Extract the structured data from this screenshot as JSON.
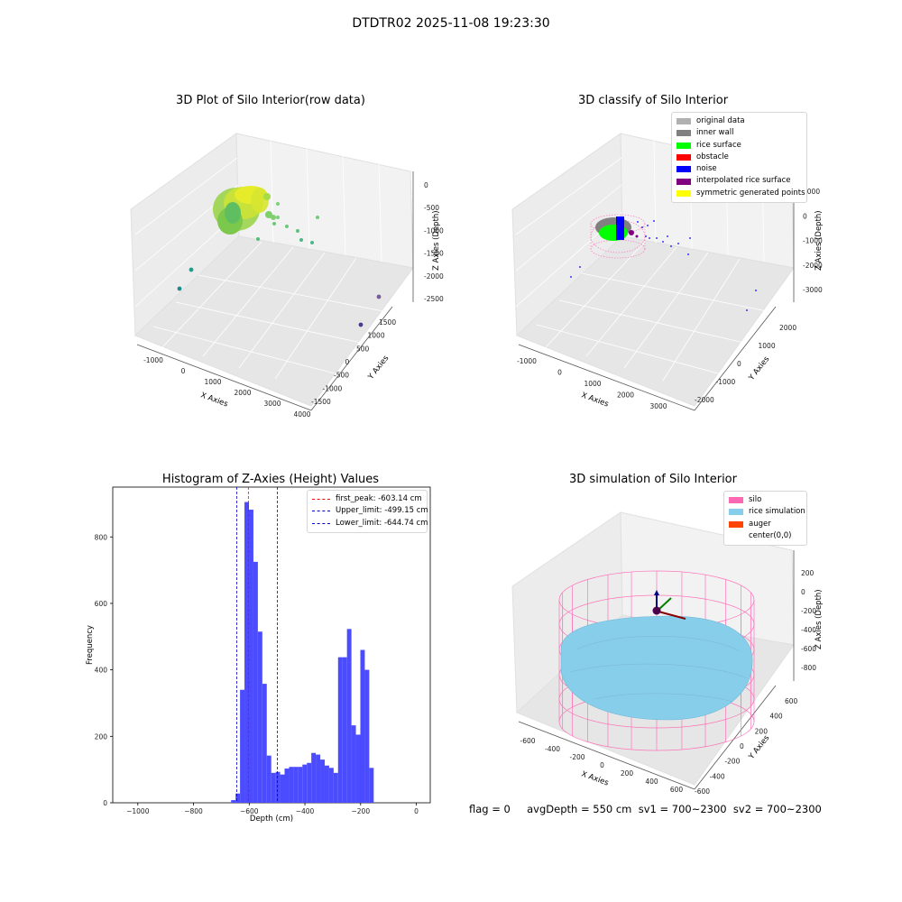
{
  "suptitle": "DTDTR02 2025-11-08 19:23:30",
  "panels": {
    "raw": {
      "title": "3D Plot of Silo Interior(row data)",
      "xlabel": "X Axies",
      "ylabel": "Y Axies",
      "zlabel": "Z Axies (Depth)",
      "xticks": [
        "-1000",
        "0",
        "1000",
        "2000",
        "3000",
        "4000"
      ],
      "yticks": [
        "1500",
        "1000",
        "500",
        "0",
        "-500",
        "-1000",
        "-1500"
      ],
      "zticks": [
        "0",
        "-500",
        "-1000",
        "-1500",
        "-2000",
        "-2500"
      ]
    },
    "classify": {
      "title": "3D classify of Silo Interior",
      "xlabel": "X Axies",
      "ylabel": "Y Axies",
      "zlabel": "Z Axies (Depth)",
      "xticks": [
        "-1000",
        "0",
        "1000",
        "2000",
        "3000"
      ],
      "yticks": [
        "2000",
        "1000",
        "0",
        "-1000",
        "-2000"
      ],
      "zticks": [
        "1000",
        "0",
        "-1000",
        "-2000",
        "-3000"
      ],
      "legend": [
        {
          "label": "original data",
          "color": "#b0b0b0"
        },
        {
          "label": "inner wall",
          "color": "#808080"
        },
        {
          "label": "rice surface",
          "color": "#00ff00"
        },
        {
          "label": "obstacle",
          "color": "#ff0000"
        },
        {
          "label": "noise",
          "color": "#0000ff"
        },
        {
          "label": "interpolated rice surface",
          "color": "#800080"
        },
        {
          "label": "symmetric generated points",
          "color": "#ffff00"
        }
      ]
    },
    "histogram": {
      "title": "Histogram of Z-Axies (Height) Values",
      "xlabel": "Depth (cm)",
      "ylabel": "Frequency",
      "bar_color": "#4b4bff"
    },
    "simulation": {
      "title": "3D simulation of Silo Interior",
      "xlabel": "X Axies",
      "ylabel": "Y Axies",
      "zlabel": "Z Axies (Depth)",
      "xticks": [
        "-600",
        "-400",
        "-200",
        "0",
        "200",
        "400",
        "600"
      ],
      "yticks": [
        "600",
        "400",
        "200",
        "0",
        "-200",
        "-400",
        "-600"
      ],
      "zticks": [
        "200",
        "0",
        "-200",
        "-400",
        "-600",
        "-800"
      ],
      "legend": [
        {
          "label": "silo",
          "color": "#ff69b4"
        },
        {
          "label": "rice simulation",
          "color": "#87ceeb"
        },
        {
          "label": "auger",
          "color": "#ff4500"
        },
        {
          "label": "center(0,0)",
          "color": "#ffffff"
        }
      ]
    }
  },
  "footer": "flag = 0     avgDepth = 550 cm  sv1 = 700~2300  sv2 = 700~2300",
  "chart_data": [
    {
      "type": "bar",
      "title": "Histogram of Z-Axies (Height) Values",
      "xlabel": "Depth (cm)",
      "ylabel": "Frequency",
      "xlim": [
        -1090,
        50
      ],
      "ylim": [
        0,
        950
      ],
      "xticks": [
        -1000,
        -800,
        -600,
        -400,
        -200,
        0
      ],
      "yticks": [
        0,
        200,
        400,
        600,
        800
      ],
      "bin_width": 16,
      "bins": [
        {
          "x": -665,
          "y": 8
        },
        {
          "x": -649,
          "y": 28
        },
        {
          "x": -633,
          "y": 340
        },
        {
          "x": -617,
          "y": 905
        },
        {
          "x": -601,
          "y": 882
        },
        {
          "x": -585,
          "y": 725
        },
        {
          "x": -569,
          "y": 515
        },
        {
          "x": -553,
          "y": 358
        },
        {
          "x": -537,
          "y": 142
        },
        {
          "x": -521,
          "y": 90
        },
        {
          "x": -505,
          "y": 93
        },
        {
          "x": -489,
          "y": 85
        },
        {
          "x": -473,
          "y": 103
        },
        {
          "x": -457,
          "y": 108
        },
        {
          "x": -441,
          "y": 108
        },
        {
          "x": -425,
          "y": 108
        },
        {
          "x": -409,
          "y": 115
        },
        {
          "x": -393,
          "y": 120
        },
        {
          "x": -377,
          "y": 150
        },
        {
          "x": -361,
          "y": 145
        },
        {
          "x": -345,
          "y": 130
        },
        {
          "x": -329,
          "y": 112
        },
        {
          "x": -313,
          "y": 105
        },
        {
          "x": -297,
          "y": 90
        },
        {
          "x": -281,
          "y": 438
        },
        {
          "x": -265,
          "y": 438
        },
        {
          "x": -249,
          "y": 523
        },
        {
          "x": -233,
          "y": 233
        },
        {
          "x": -217,
          "y": 205
        },
        {
          "x": -201,
          "y": 460
        },
        {
          "x": -185,
          "y": 400
        },
        {
          "x": -169,
          "y": 105
        }
      ],
      "note_bins_shifted": false,
      "reference_lines": [
        {
          "label": "first_peak: -603.14 cm",
          "x": -603.14,
          "color": "#ff0000"
        },
        {
          "label": "Upper_limit: -499.15 cm",
          "x": -499.15,
          "color": "#0000cc"
        },
        {
          "label": "Lower_limit: -644.74 cm",
          "x": -644.74,
          "color": "#0000cc"
        }
      ],
      "legend_position": "upper right",
      "grid": false
    }
  ]
}
